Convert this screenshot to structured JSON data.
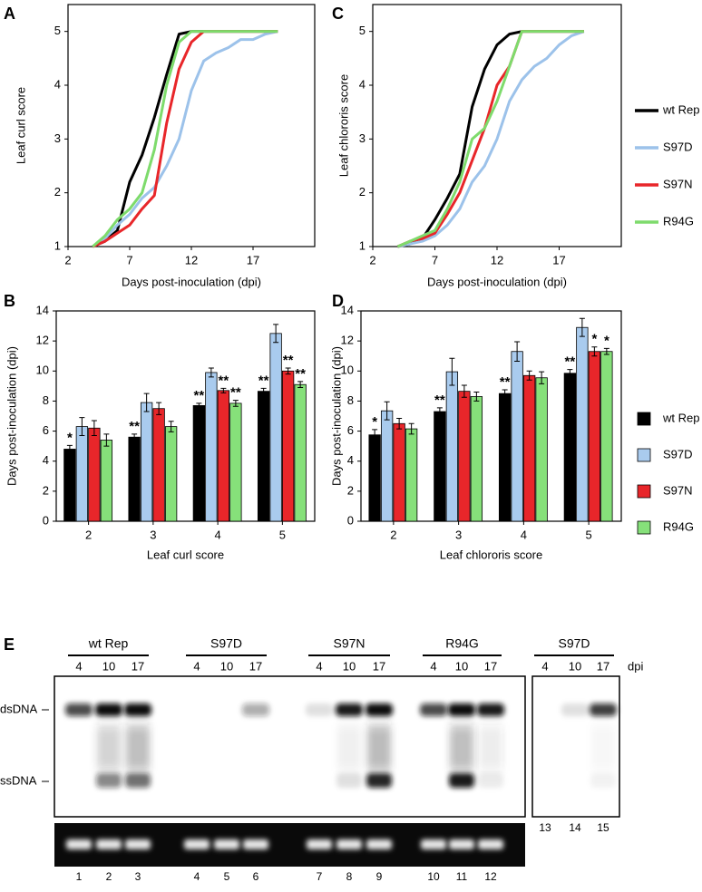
{
  "chart_data": [
    {
      "type": "line",
      "panel_label": "A",
      "xlabel": "Days post-inoculation (dpi)",
      "ylabel": "Leaf curl score",
      "x": [
        4,
        5,
        6,
        7,
        8,
        9,
        10,
        11,
        12,
        13,
        14,
        15,
        16,
        17,
        18,
        19
      ],
      "xlim": [
        2,
        22
      ],
      "xticks": [
        2,
        7,
        12,
        17
      ],
      "ylim": [
        1,
        5.5
      ],
      "yticks": [
        1,
        2,
        3,
        4,
        5
      ],
      "legend": false,
      "series": [
        {
          "name": "wt Rep",
          "color": "#000000",
          "values": [
            1,
            1.1,
            1.3,
            2.2,
            2.7,
            3.4,
            4.2,
            4.95,
            5,
            5,
            5,
            5,
            5,
            5,
            5,
            5
          ]
        },
        {
          "name": "S97D",
          "color": "#9cc2ea",
          "values": [
            1,
            1.15,
            1.4,
            1.6,
            1.9,
            2.1,
            2.5,
            3.0,
            3.9,
            4.45,
            4.6,
            4.7,
            4.85,
            4.85,
            4.95,
            5
          ]
        },
        {
          "name": "S97N",
          "color": "#e8262a",
          "values": [
            1,
            1.1,
            1.25,
            1.4,
            1.7,
            1.95,
            3.3,
            4.3,
            4.8,
            5,
            5,
            5,
            5,
            5,
            5,
            5
          ]
        },
        {
          "name": "R94G",
          "color": "#7edb6c",
          "values": [
            1,
            1.2,
            1.5,
            1.7,
            2.0,
            2.8,
            4.0,
            4.8,
            5,
            5,
            5,
            5,
            5,
            5,
            5,
            5
          ]
        }
      ]
    },
    {
      "type": "bar",
      "panel_label": "B",
      "xlabel": "Leaf curl score",
      "ylabel": "Days post-inoculation (dpi)",
      "categories": [
        "2",
        "3",
        "4",
        "5"
      ],
      "ylim": [
        0,
        14
      ],
      "yticks": [
        0,
        2,
        4,
        6,
        8,
        10,
        12,
        14
      ],
      "legend": false,
      "series": [
        {
          "name": "wt Rep",
          "color": "#000000",
          "values": [
            4.8,
            5.6,
            7.7,
            8.65
          ],
          "errors": [
            0.25,
            0.2,
            0.15,
            0.2
          ],
          "significance": [
            "*",
            "**",
            "**",
            "**"
          ]
        },
        {
          "name": "S97D",
          "color": "#a9cbee",
          "values": [
            6.3,
            7.9,
            9.9,
            12.5
          ],
          "errors": [
            0.6,
            0.6,
            0.3,
            0.6
          ],
          "significance": [
            null,
            null,
            null,
            null
          ]
        },
        {
          "name": "S97N",
          "color": "#e8262a",
          "values": [
            6.2,
            7.5,
            8.7,
            10.0
          ],
          "errors": [
            0.5,
            0.4,
            0.15,
            0.2
          ],
          "significance": [
            null,
            null,
            "**",
            "**"
          ]
        },
        {
          "name": "R94G",
          "color": "#86e07a",
          "values": [
            5.4,
            6.3,
            7.85,
            9.1
          ],
          "errors": [
            0.4,
            0.35,
            0.2,
            0.2
          ],
          "significance": [
            null,
            null,
            "**",
            "**"
          ]
        }
      ]
    },
    {
      "type": "line",
      "panel_label": "C",
      "xlabel": "Days post-inoculation (dpi)",
      "ylabel": "Leaf chlororis score",
      "x": [
        4,
        5,
        6,
        7,
        8,
        9,
        10,
        11,
        12,
        13,
        14,
        15,
        16,
        17,
        18,
        19
      ],
      "xlim": [
        2,
        22
      ],
      "xticks": [
        2,
        7,
        12,
        17
      ],
      "ylim": [
        1,
        5.5
      ],
      "yticks": [
        1,
        2,
        3,
        4,
        5
      ],
      "legend": "right",
      "series": [
        {
          "name": "wt Rep",
          "color": "#000000",
          "values": [
            1,
            1.05,
            1.15,
            1.5,
            1.9,
            2.35,
            3.6,
            4.3,
            4.75,
            4.95,
            5,
            5,
            5,
            5,
            5,
            5
          ]
        },
        {
          "name": "S97D",
          "color": "#9cc2ea",
          "values": [
            1,
            1.05,
            1.1,
            1.2,
            1.4,
            1.7,
            2.2,
            2.5,
            3.0,
            3.7,
            4.1,
            4.35,
            4.5,
            4.75,
            4.92,
            5
          ]
        },
        {
          "name": "S97N",
          "color": "#e8262a",
          "values": [
            1,
            1.1,
            1.15,
            1.25,
            1.6,
            2.0,
            2.6,
            3.2,
            4.0,
            4.35,
            5,
            5,
            5,
            5,
            5,
            5
          ]
        },
        {
          "name": "R94G",
          "color": "#7edb6c",
          "values": [
            1,
            1.1,
            1.2,
            1.3,
            1.7,
            2.2,
            3.0,
            3.2,
            3.7,
            4.35,
            5,
            5,
            5,
            5,
            5,
            5
          ]
        }
      ]
    },
    {
      "type": "bar",
      "panel_label": "D",
      "xlabel": "Leaf chlororis score",
      "ylabel": "Days post-inoculation (dpi)",
      "categories": [
        "2",
        "3",
        "4",
        "5"
      ],
      "ylim": [
        0,
        14
      ],
      "yticks": [
        0,
        2,
        4,
        6,
        8,
        10,
        12,
        14
      ],
      "legend": "right",
      "series": [
        {
          "name": "wt Rep",
          "color": "#000000",
          "values": [
            5.75,
            7.3,
            8.5,
            9.85
          ],
          "errors": [
            0.35,
            0.25,
            0.25,
            0.25
          ],
          "significance": [
            "*",
            "**",
            "**",
            "**"
          ]
        },
        {
          "name": "S97D",
          "color": "#a9cbee",
          "values": [
            7.35,
            9.95,
            11.3,
            12.9
          ],
          "errors": [
            0.6,
            0.9,
            0.65,
            0.6
          ],
          "significance": [
            null,
            null,
            null,
            null
          ]
        },
        {
          "name": "S97N",
          "color": "#e8262a",
          "values": [
            6.5,
            8.65,
            9.7,
            11.3
          ],
          "errors": [
            0.35,
            0.4,
            0.3,
            0.3
          ],
          "significance": [
            null,
            null,
            null,
            "*"
          ]
        },
        {
          "name": "R94G",
          "color": "#86e07a",
          "values": [
            6.15,
            8.3,
            9.55,
            11.3
          ],
          "errors": [
            0.35,
            0.3,
            0.4,
            0.2
          ],
          "significance": [
            null,
            null,
            null,
            "*"
          ]
        }
      ]
    }
  ],
  "blot": {
    "panel_label": "E",
    "dpi_label": "dpi",
    "groups": [
      {
        "name": "wt Rep",
        "dpi": [
          "4",
          "10",
          "17"
        ]
      },
      {
        "name": "S97D",
        "dpi": [
          "4",
          "10",
          "17"
        ]
      },
      {
        "name": "S97N",
        "dpi": [
          "4",
          "10",
          "17"
        ]
      },
      {
        "name": "R94G",
        "dpi": [
          "4",
          "10",
          "17"
        ]
      },
      {
        "name": "S97D",
        "dpi": [
          "4",
          "10",
          "17"
        ]
      }
    ],
    "bands": [
      "dsDNA",
      "ssDNA"
    ],
    "lanes": [
      "1",
      "2",
      "3",
      "4",
      "5",
      "6",
      "7",
      "8",
      "9",
      "10",
      "11",
      "12"
    ],
    "inset_lanes": [
      "13",
      "14",
      "15"
    ]
  }
}
